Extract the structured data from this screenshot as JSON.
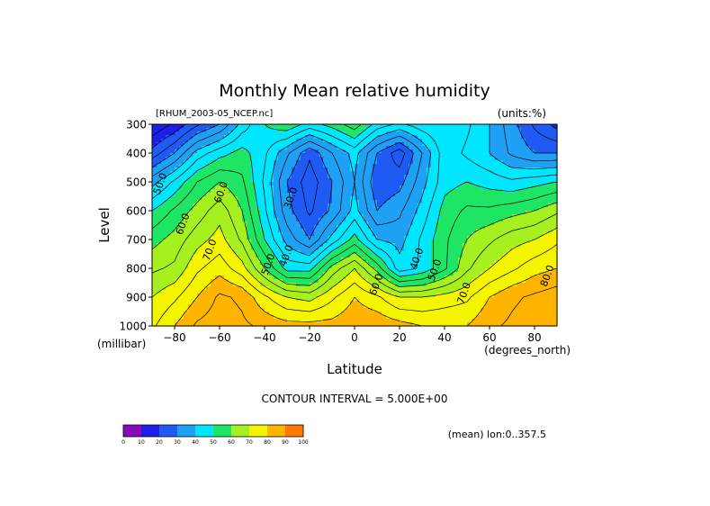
{
  "chart_data": {
    "type": "contour",
    "title": "Monthly Mean relative humidity",
    "dataset_label": "[RHUM_2003-05_NCEP.nc]",
    "units_label": "(units:%)",
    "xlabel": "Latitude",
    "ylabel": "Level",
    "x_units": "(degrees_north)",
    "y_units": "(millibar)",
    "xlim": [
      -90,
      90
    ],
    "ylim": [
      1000,
      300
    ],
    "x_ticks": [
      -80,
      -60,
      -40,
      -20,
      0,
      20,
      40,
      60,
      80
    ],
    "y_ticks": [
      300,
      400,
      500,
      600,
      700,
      800,
      900,
      1000
    ],
    "contour_interval_text": "CONTOUR INTERVAL = 5.000E+00",
    "averaging_text": "(mean) lon:0..357.5",
    "contour_labels": [
      {
        "text": "50.0",
        "lat": -85,
        "lev": 510
      },
      {
        "text": "60.0",
        "lat": -58,
        "lev": 540
      },
      {
        "text": "60.0",
        "lat": -75,
        "lev": 650
      },
      {
        "text": "70.0",
        "lat": -63,
        "lev": 740
      },
      {
        "text": "30.0",
        "lat": -27,
        "lev": 560
      },
      {
        "text": "40.0",
        "lat": -29,
        "lev": 760
      },
      {
        "text": "50.0",
        "lat": -37,
        "lev": 790
      },
      {
        "text": "60.0",
        "lat": 11,
        "lev": 860
      },
      {
        "text": "40.0",
        "lat": 29,
        "lev": 770
      },
      {
        "text": "50.0",
        "lat": 37,
        "lev": 810
      },
      {
        "text": "70.0",
        "lat": 50,
        "lev": 890
      },
      {
        "text": "80.0",
        "lat": 87,
        "lev": 830
      }
    ],
    "colorbar": {
      "ticks": [
        "0",
        "10",
        "20",
        "30",
        "40",
        "50",
        "60",
        "70",
        "80",
        "90",
        "100"
      ],
      "colors": [
        "#8a0ab9",
        "#1e1ee6",
        "#1f5af5",
        "#1ea0f5",
        "#00e6ff",
        "#1ee664",
        "#a5f01e",
        "#f5f500",
        "#ffb400",
        "#ff7800",
        "#f01414"
      ]
    },
    "latitudes": [
      -90,
      -80,
      -70,
      -60,
      -50,
      -40,
      -30,
      -20,
      -10,
      0,
      10,
      20,
      30,
      40,
      50,
      60,
      70,
      80,
      90
    ],
    "levels": [
      300,
      400,
      500,
      600,
      700,
      800,
      900,
      1000
    ],
    "values": [
      [
        10,
        16,
        24,
        30,
        42,
        50,
        54,
        48,
        52,
        58,
        48,
        44,
        48,
        50,
        46,
        40,
        32,
        24,
        18
      ],
      [
        22,
        30,
        42,
        48,
        52,
        46,
        36,
        26,
        35,
        42,
        30,
        22,
        35,
        48,
        44,
        40,
        34,
        30,
        30
      ],
      [
        38,
        46,
        55,
        60,
        56,
        44,
        30,
        22,
        30,
        40,
        26,
        28,
        38,
        48,
        50,
        48,
        46,
        48,
        50
      ],
      [
        50,
        56,
        62,
        68,
        60,
        46,
        32,
        24,
        31,
        42,
        30,
        34,
        42,
        52,
        56,
        56,
        58,
        60,
        64
      ],
      [
        58,
        62,
        68,
        72,
        64,
        50,
        38,
        30,
        42,
        52,
        40,
        38,
        46,
        54,
        60,
        64,
        68,
        70,
        74
      ],
      [
        64,
        66,
        74,
        78,
        72,
        60,
        48,
        48,
        62,
        70,
        58,
        42,
        46,
        54,
        64,
        70,
        74,
        78,
        80
      ],
      [
        70,
        74,
        80,
        86,
        84,
        76,
        70,
        68,
        74,
        80,
        76,
        70,
        70,
        72,
        74,
        80,
        84,
        86,
        88
      ],
      [
        74,
        80,
        86,
        88,
        86,
        84,
        82,
        82,
        82,
        84,
        84,
        82,
        80,
        80,
        80,
        84,
        86,
        88,
        90
      ]
    ]
  }
}
